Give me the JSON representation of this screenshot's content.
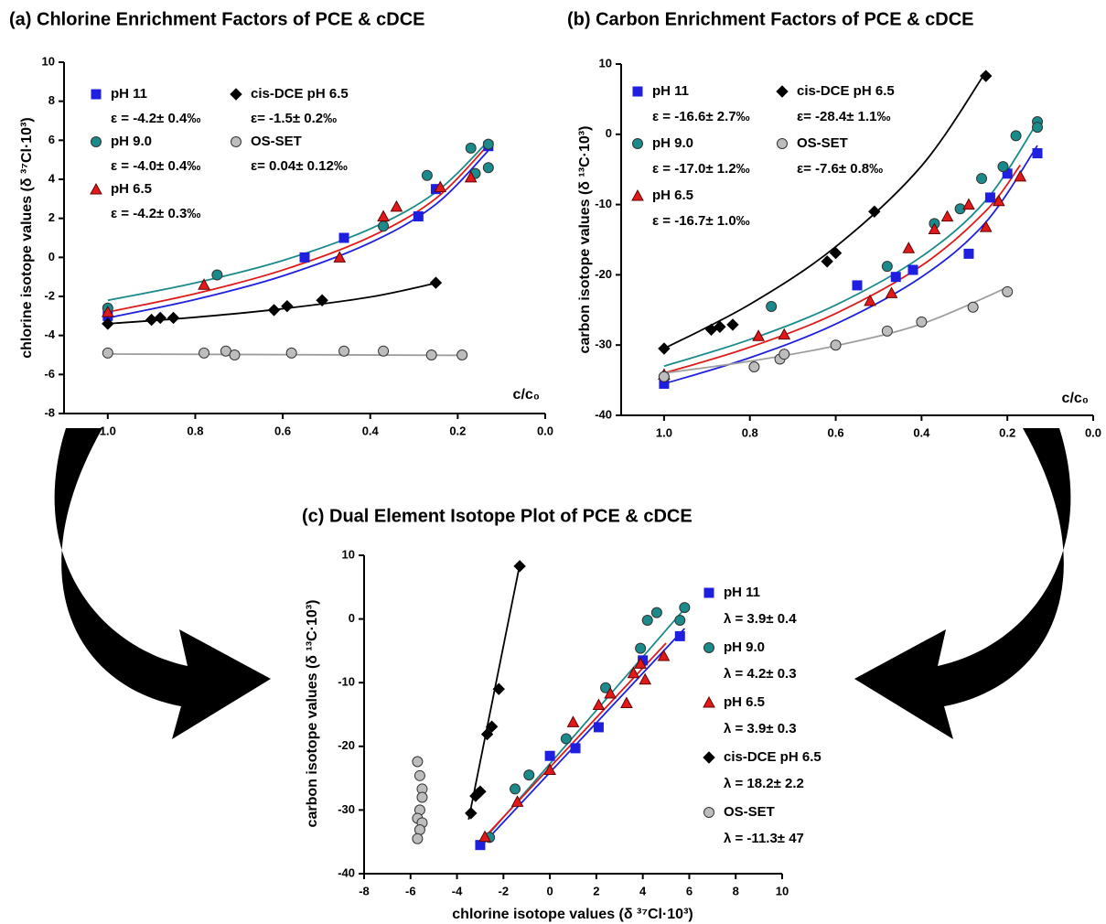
{
  "chart_data": [
    {
      "type": "scatter",
      "title": "(a) Chlorine Enrichment Factors of PCE & cDCE",
      "x_label": "c/c₀",
      "y_label": "chlorine isotope values (δ ³⁷Cl·10³)",
      "xlim": [
        1.1,
        0
      ],
      "xticks": [
        {
          "value": 1,
          "label": "1.0"
        },
        0.8,
        0.6,
        0.4,
        0.2,
        {
          "value": 0,
          "label": "0.0"
        }
      ],
      "ylim": [
        -8,
        10
      ],
      "yticks": [
        -8,
        -6,
        -4,
        -2,
        0,
        2,
        4,
        6,
        8,
        10
      ],
      "legend": "upper left",
      "series": [
        {
          "name": "pH 11",
          "annotation": "ε = -4.2± 0.4‰",
          "color": "#1f1fe0",
          "marker": "square",
          "x": [
            1.0,
            0.55,
            0.46,
            0.29,
            0.25,
            0.13
          ],
          "values": [
            -3.0,
            0.0,
            1.0,
            2.1,
            3.5,
            5.7
          ]
        },
        {
          "name": "pH 9.0",
          "annotation": "ε = -4.0± 0.4‰",
          "color": "#1a8a8a",
          "marker": "circle",
          "x": [
            1.0,
            0.75,
            0.37,
            0.27,
            0.17,
            0.16,
            0.13,
            0.13
          ],
          "values": [
            -2.6,
            -0.9,
            1.6,
            4.2,
            5.6,
            4.3,
            5.8,
            4.6
          ]
        },
        {
          "name": "pH 6.5",
          "annotation": "ε = -4.2± 0.3‰",
          "color": "#e01a1a",
          "marker": "triangle",
          "x": [
            1.0,
            0.78,
            0.47,
            0.37,
            0.34,
            0.24,
            0.17
          ],
          "values": [
            -2.8,
            -1.4,
            0.0,
            2.1,
            2.6,
            3.6,
            4.1
          ]
        },
        {
          "name": "cis-DCE pH 6.5",
          "annotation": "ε= -1.5± 0.2‰",
          "color": "#000000",
          "marker": "diamond",
          "x": [
            1.0,
            0.9,
            0.88,
            0.85,
            0.62,
            0.59,
            0.51,
            0.25
          ],
          "values": [
            -3.4,
            -3.2,
            -3.1,
            -3.1,
            -2.7,
            -2.5,
            -2.2,
            -1.3
          ]
        },
        {
          "name": "OS-SET",
          "annotation": "ε= 0.04± 0.12‰",
          "color": "#9e9e9e",
          "marker": "circle",
          "x": [
            1.0,
            0.78,
            0.73,
            0.71,
            0.58,
            0.46,
            0.37,
            0.26,
            0.19
          ],
          "values": [
            -4.9,
            -4.9,
            -4.8,
            -5.0,
            -4.9,
            -4.8,
            -4.8,
            -5.0,
            -5.0
          ]
        }
      ],
      "fits": [
        {
          "color": "#1f1fe0",
          "x": [
            1.0,
            0.8,
            0.6,
            0.4,
            0.25,
            0.13
          ],
          "values": [
            -3.1,
            -2.16,
            -0.95,
            0.75,
            2.72,
            5.47
          ]
        },
        {
          "color": "#1a8a8a",
          "x": [
            1.0,
            0.8,
            0.6,
            0.4,
            0.25,
            0.13
          ],
          "values": [
            -2.2,
            -1.31,
            -0.16,
            1.46,
            3.34,
            5.96
          ]
        },
        {
          "color": "#e01a1a",
          "x": [
            1.0,
            0.8,
            0.6,
            0.4,
            0.25,
            0.13
          ],
          "values": [
            -2.8,
            -1.86,
            -0.65,
            1.05,
            3.02,
            5.77
          ]
        },
        {
          "color": "#000000",
          "x": [
            1.0,
            0.8,
            0.6,
            0.4,
            0.25
          ],
          "values": [
            -3.4,
            -3.07,
            -2.63,
            -2.03,
            -1.32
          ]
        },
        {
          "color": "#9e9e9e",
          "x": [
            1.0,
            0.18
          ],
          "values": [
            -4.95,
            -5.02
          ]
        }
      ]
    },
    {
      "type": "scatter",
      "title": "(b) Carbon Enrichment Factors of PCE & cDCE",
      "x_label": "c/c₀",
      "y_label": "carbon isotope values (δ ¹³C·10³)",
      "xlim": [
        1.1,
        0
      ],
      "xticks": [
        {
          "value": 1,
          "label": "1.0"
        },
        0.8,
        0.6,
        0.4,
        0.2,
        {
          "value": 0,
          "label": "0.0"
        }
      ],
      "ylim": [
        -40,
        10
      ],
      "yticks": [
        -40,
        -30,
        -20,
        -10,
        0,
        10
      ],
      "legend": "upper left",
      "series": [
        {
          "name": "pH 11",
          "annotation": "ε = -16.6± 2.7‰",
          "color": "#1f1fe0",
          "marker": "square",
          "x": [
            1.0,
            0.55,
            0.46,
            0.42,
            0.29,
            0.24,
            0.2,
            0.13
          ],
          "values": [
            -35.5,
            -21.5,
            -20.3,
            -19.3,
            -17.0,
            -9.0,
            -5.6,
            -2.7
          ]
        },
        {
          "name": "pH 9.0",
          "annotation": "ε = -17.0± 1.2‰",
          "color": "#1a8a8a",
          "marker": "circle",
          "x": [
            1.0,
            0.75,
            0.48,
            0.37,
            0.31,
            0.26,
            0.21,
            0.18,
            0.13,
            0.13
          ],
          "values": [
            -34.5,
            -24.5,
            -18.8,
            -12.7,
            -10.6,
            -6.3,
            -4.6,
            -0.2,
            1.8,
            1.0
          ]
        },
        {
          "name": "pH 6.5",
          "annotation": "ε = -16.7± 1.0‰",
          "color": "#e01a1a",
          "marker": "triangle",
          "x": [
            1.0,
            0.78,
            0.72,
            0.52,
            0.47,
            0.43,
            0.37,
            0.34,
            0.29,
            0.25,
            0.22,
            0.17
          ],
          "values": [
            -34.2,
            -28.7,
            -28.5,
            -23.7,
            -22.6,
            -16.2,
            -13.5,
            -11.7,
            -10.0,
            -13.2,
            -9.5,
            -6.0
          ]
        },
        {
          "name": "cis-DCE pH 6.5",
          "annotation": "ε= -28.4± 1.1‰",
          "color": "#000000",
          "marker": "diamond",
          "x": [
            1.0,
            0.89,
            0.87,
            0.84,
            0.62,
            0.6,
            0.51,
            0.25
          ],
          "values": [
            -30.5,
            -27.8,
            -27.4,
            -27.1,
            -18.1,
            -16.9,
            -11.0,
            8.3
          ]
        },
        {
          "name": "OS-SET",
          "annotation": "ε= -7.6± 0.8‰",
          "color": "#9e9e9e",
          "marker": "circle",
          "x": [
            1.0,
            0.79,
            0.73,
            0.72,
            0.6,
            0.48,
            0.4,
            0.28,
            0.2
          ],
          "values": [
            -34.5,
            -33.1,
            -32.0,
            -31.3,
            -30.0,
            -28.0,
            -26.7,
            -24.6,
            -22.4
          ]
        }
      ],
      "fits": [
        {
          "color": "#1f1fe0",
          "x": [
            1.0,
            0.8,
            0.6,
            0.4,
            0.25,
            0.13
          ],
          "values": [
            -35.5,
            -31.8,
            -27.0,
            -20.3,
            -12.5,
            -1.6
          ]
        },
        {
          "color": "#1a8a8a",
          "x": [
            1.0,
            0.8,
            0.6,
            0.4,
            0.25,
            0.13
          ],
          "values": [
            -33.0,
            -29.2,
            -24.3,
            -17.4,
            -9.4,
            1.7
          ]
        },
        {
          "color": "#e01a1a",
          "x": [
            1.0,
            0.8,
            0.6,
            0.4,
            0.25,
            0.17
          ],
          "values": [
            -34.0,
            -30.3,
            -25.5,
            -18.7,
            -10.9,
            -4.4
          ]
        },
        {
          "color": "#000000",
          "x": [
            1.0,
            0.8,
            0.6,
            0.4,
            0.25
          ],
          "values": [
            -30.5,
            -24.2,
            -16.0,
            -4.5,
            8.9
          ]
        },
        {
          "color": "#9e9e9e",
          "x": [
            1.0,
            0.8,
            0.6,
            0.4,
            0.2
          ],
          "values": [
            -34.0,
            -32.3,
            -30.1,
            -27.0,
            -21.8
          ]
        }
      ]
    },
    {
      "type": "scatter",
      "title": "(c) Dual Element Isotope Plot of PCE & cDCE",
      "x_label": "chlorine isotope values (δ ³⁷Cl·10³)",
      "y_label": "carbon isotope values (δ ¹³C·10³)",
      "xlim": [
        -8,
        10
      ],
      "xticks": [
        -8,
        -6,
        -4,
        -2,
        0,
        2,
        4,
        6,
        8,
        10
      ],
      "ylim": [
        -40,
        10
      ],
      "yticks": [
        -40,
        -30,
        -20,
        -10,
        0,
        10
      ],
      "legend": "right",
      "series": [
        {
          "name": "pH 11",
          "annotation": "λ = 3.9± 0.4",
          "color": "#1f1fe0",
          "marker": "square",
          "x": [
            -3.0,
            0.0,
            1.1,
            2.1,
            4.0,
            5.6
          ],
          "values": [
            -35.5,
            -21.5,
            -20.3,
            -17.0,
            -6.5,
            -2.7
          ]
        },
        {
          "name": "pH 9.0",
          "annotation": "λ = 4.2± 0.3",
          "color": "#1a8a8a",
          "marker": "circle",
          "x": [
            -2.6,
            -1.5,
            -0.9,
            0.7,
            2.4,
            3.9,
            4.2,
            4.6,
            5.6,
            5.8
          ],
          "values": [
            -34.3,
            -26.7,
            -24.5,
            -18.8,
            -10.8,
            -4.6,
            -0.2,
            1.0,
            -0.2,
            1.8
          ]
        },
        {
          "name": "pH 6.5",
          "annotation": "λ = 3.9± 0.3",
          "color": "#e01a1a",
          "marker": "triangle",
          "x": [
            -2.8,
            -1.4,
            0.0,
            1.0,
            2.1,
            2.6,
            3.3,
            3.6,
            3.9,
            4.1,
            4.9
          ],
          "values": [
            -34.2,
            -28.7,
            -23.7,
            -16.2,
            -13.5,
            -11.7,
            -13.2,
            -8.5,
            -7.0,
            -9.5,
            -5.8
          ]
        },
        {
          "name": "cis-DCE pH 6.5",
          "annotation": "λ = 18.2± 2.2",
          "color": "#000000",
          "marker": "diamond",
          "x": [
            -3.4,
            -3.2,
            -3.1,
            -3.0,
            -2.7,
            -2.5,
            -2.2,
            -1.3
          ],
          "values": [
            -30.5,
            -27.8,
            -27.4,
            -27.1,
            -18.1,
            -16.9,
            -11.0,
            8.3
          ]
        },
        {
          "name": "OS-SET",
          "annotation": "λ = -11.3± 47",
          "color": "#9e9e9e",
          "marker": "circle",
          "x": [
            -5.7,
            -5.6,
            -5.5,
            -5.5,
            -5.6,
            -5.7,
            -5.5,
            -5.6,
            -5.7
          ],
          "values": [
            -22.4,
            -24.6,
            -26.7,
            -28.0,
            -30.0,
            -31.3,
            -32.0,
            -33.1,
            -34.5
          ]
        }
      ],
      "fits": [
        {
          "color": "#1f1fe0",
          "x": [
            -3.0,
            5.8
          ],
          "values": [
            -35.8,
            -1.5
          ]
        },
        {
          "color": "#1a8a8a",
          "x": [
            -2.8,
            5.8
          ],
          "values": [
            -34.5,
            1.6
          ]
        },
        {
          "color": "#e01a1a",
          "x": [
            -3.0,
            5.0
          ],
          "values": [
            -35.0,
            -3.8
          ]
        },
        {
          "color": "#000000",
          "x": [
            -3.5,
            -1.3
          ],
          "values": [
            -31.5,
            8.5
          ]
        }
      ]
    }
  ]
}
